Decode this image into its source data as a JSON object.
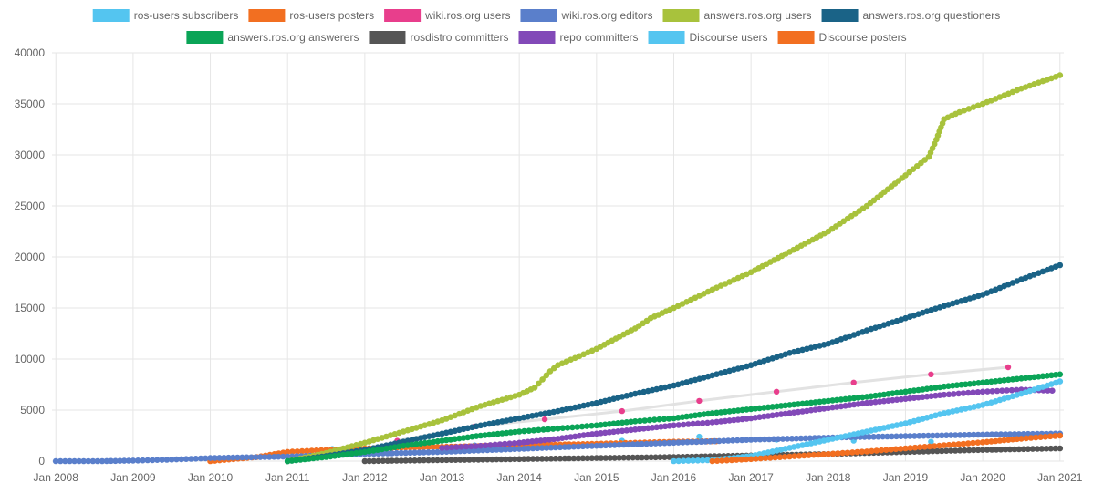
{
  "chart_data": {
    "type": "line",
    "legend_position": "top",
    "grid": true,
    "xlim": [
      2007.95,
      2021.05
    ],
    "ylim": [
      0,
      40000
    ],
    "x_ticks": [
      {
        "x": 2008,
        "label": "Jan 2008"
      },
      {
        "x": 2009,
        "label": "Jan 2009"
      },
      {
        "x": 2010,
        "label": "Jan 2010"
      },
      {
        "x": 2011,
        "label": "Jan 2011"
      },
      {
        "x": 2012,
        "label": "Jan 2012"
      },
      {
        "x": 2013,
        "label": "Jan 2013"
      },
      {
        "x": 2014,
        "label": "Jan 2014"
      },
      {
        "x": 2015,
        "label": "Jan 2015"
      },
      {
        "x": 2016,
        "label": "Jan 2016"
      },
      {
        "x": 2017,
        "label": "Jan 2017"
      },
      {
        "x": 2018,
        "label": "Jan 2018"
      },
      {
        "x": 2019,
        "label": "Jan 2019"
      },
      {
        "x": 2020,
        "label": "Jan 2020"
      },
      {
        "x": 2021,
        "label": "Jan 2021"
      }
    ],
    "y_ticks": [
      {
        "y": 0,
        "label": "0"
      },
      {
        "y": 5000,
        "label": "5000"
      },
      {
        "y": 10000,
        "label": "10000"
      },
      {
        "y": 15000,
        "label": "15000"
      },
      {
        "y": 20000,
        "label": "20000"
      },
      {
        "y": 25000,
        "label": "25000"
      },
      {
        "y": 30000,
        "label": "30000"
      },
      {
        "y": 35000,
        "label": "35000"
      },
      {
        "y": 40000,
        "label": "40000"
      }
    ],
    "series": [
      {
        "name": "ros-users subscribers",
        "color": "#54c5f0",
        "line": false,
        "points": [
          [
            2011.58,
            1200
          ],
          [
            2012.42,
            1400
          ],
          [
            2013.42,
            1550
          ],
          [
            2014.33,
            1700
          ],
          [
            2015.33,
            2000
          ],
          [
            2016.33,
            2400
          ],
          [
            2017.33,
            2100
          ],
          [
            2018.33,
            2000
          ],
          [
            2019.33,
            1900
          ]
        ]
      },
      {
        "name": "ros-users posters",
        "color": "#f26f21",
        "line": true,
        "points": [
          [
            2010.0,
            0
          ],
          [
            2010.3,
            200
          ],
          [
            2010.6,
            400
          ],
          [
            2011.0,
            900
          ],
          [
            2011.5,
            1100
          ],
          [
            2012.0,
            1250
          ],
          [
            2013.0,
            1400
          ],
          [
            2014.0,
            1550
          ],
          [
            2015.0,
            1700
          ],
          [
            2015.5,
            1800
          ],
          [
            2016.0,
            1900
          ],
          [
            2016.55,
            1950
          ]
        ]
      },
      {
        "name": "wiki.ros.org users",
        "color": "#e83e8c",
        "line": true,
        "line_color": "#e2e2e2",
        "points": [
          [
            2012.42,
            2000
          ],
          [
            2013.42,
            3400
          ],
          [
            2014.33,
            4100
          ],
          [
            2015.33,
            4900
          ],
          [
            2016.33,
            5900
          ],
          [
            2017.33,
            6800
          ],
          [
            2018.33,
            7700
          ],
          [
            2019.33,
            8500
          ],
          [
            2020.33,
            9200
          ]
        ]
      },
      {
        "name": "wiki.ros.org editors",
        "color": "#5a7fcb",
        "line": true,
        "points": [
          [
            2008.0,
            0
          ],
          [
            2008.3,
            0
          ],
          [
            2008.6,
            0
          ],
          [
            2009.0,
            50
          ],
          [
            2009.5,
            150
          ],
          [
            2010.0,
            300
          ],
          [
            2011.0,
            450
          ],
          [
            2012.0,
            700
          ],
          [
            2013.0,
            900
          ],
          [
            2014.0,
            1200
          ],
          [
            2015.0,
            1500
          ],
          [
            2016.0,
            1800
          ],
          [
            2017.0,
            2100
          ],
          [
            2018.0,
            2300
          ],
          [
            2019.0,
            2450
          ],
          [
            2020.0,
            2600
          ],
          [
            2021.0,
            2700
          ]
        ]
      },
      {
        "name": "answers.ros.org users",
        "color": "#a8c23c",
        "line": true,
        "points": [
          [
            2011.0,
            0
          ],
          [
            2011.5,
            800
          ],
          [
            2012.0,
            1800
          ],
          [
            2012.5,
            2900
          ],
          [
            2013.0,
            4000
          ],
          [
            2013.5,
            5400
          ],
          [
            2014.0,
            6500
          ],
          [
            2014.2,
            7200
          ],
          [
            2014.3,
            8000
          ],
          [
            2014.4,
            8800
          ],
          [
            2014.5,
            9400
          ],
          [
            2015.0,
            11000
          ],
          [
            2015.5,
            13000
          ],
          [
            2015.7,
            14000
          ],
          [
            2016.0,
            15000
          ],
          [
            2016.5,
            16800
          ],
          [
            2017.0,
            18500
          ],
          [
            2017.5,
            20500
          ],
          [
            2018.0,
            22500
          ],
          [
            2018.5,
            25000
          ],
          [
            2019.0,
            28000
          ],
          [
            2019.3,
            29800
          ],
          [
            2019.4,
            31500
          ],
          [
            2019.5,
            33500
          ],
          [
            2019.7,
            34200
          ],
          [
            2020.0,
            35000
          ],
          [
            2020.5,
            36500
          ],
          [
            2021.0,
            37800
          ]
        ]
      },
      {
        "name": "answers.ros.org questioners",
        "color": "#1a6387",
        "line": true,
        "points": [
          [
            2011.0,
            0
          ],
          [
            2011.5,
            500
          ],
          [
            2012.0,
            1100
          ],
          [
            2012.5,
            1900
          ],
          [
            2013.0,
            2700
          ],
          [
            2013.5,
            3500
          ],
          [
            2014.0,
            4200
          ],
          [
            2014.5,
            4900
          ],
          [
            2015.0,
            5700
          ],
          [
            2015.5,
            6600
          ],
          [
            2016.0,
            7400
          ],
          [
            2016.5,
            8400
          ],
          [
            2017.0,
            9400
          ],
          [
            2017.5,
            10600
          ],
          [
            2018.0,
            11500
          ],
          [
            2018.5,
            12800
          ],
          [
            2019.0,
            14000
          ],
          [
            2019.5,
            15200
          ],
          [
            2020.0,
            16300
          ],
          [
            2020.5,
            17800
          ],
          [
            2021.0,
            19200
          ]
        ]
      },
      {
        "name": "answers.ros.org answerers",
        "color": "#0aa457",
        "line": true,
        "points": [
          [
            2011.0,
            0
          ],
          [
            2011.5,
            400
          ],
          [
            2012.0,
            900
          ],
          [
            2012.5,
            1500
          ],
          [
            2013.0,
            2000
          ],
          [
            2013.5,
            2500
          ],
          [
            2014.0,
            2900
          ],
          [
            2014.5,
            3200
          ],
          [
            2015.0,
            3500
          ],
          [
            2015.5,
            3900
          ],
          [
            2016.0,
            4200
          ],
          [
            2016.5,
            4700
          ],
          [
            2017.0,
            5100
          ],
          [
            2017.5,
            5500
          ],
          [
            2018.0,
            5900
          ],
          [
            2018.5,
            6300
          ],
          [
            2019.0,
            6800
          ],
          [
            2019.5,
            7300
          ],
          [
            2020.0,
            7700
          ],
          [
            2020.5,
            8100
          ],
          [
            2021.0,
            8500
          ]
        ]
      },
      {
        "name": "rosdistro committers",
        "color": "#555555",
        "line": true,
        "points": [
          [
            2012.0,
            0
          ],
          [
            2013.0,
            100
          ],
          [
            2014.0,
            200
          ],
          [
            2015.0,
            300
          ],
          [
            2016.0,
            400
          ],
          [
            2017.0,
            550
          ],
          [
            2018.0,
            700
          ],
          [
            2019.0,
            900
          ],
          [
            2020.0,
            1100
          ],
          [
            2021.0,
            1250
          ]
        ]
      },
      {
        "name": "repo committers",
        "color": "#8249b8",
        "line": true,
        "points": [
          [
            2013.0,
            1300
          ],
          [
            2013.5,
            1500
          ],
          [
            2014.0,
            1800
          ],
          [
            2014.5,
            2200
          ],
          [
            2015.0,
            2700
          ],
          [
            2015.5,
            3100
          ],
          [
            2016.0,
            3500
          ],
          [
            2016.5,
            3800
          ],
          [
            2017.0,
            4200
          ],
          [
            2017.5,
            4700
          ],
          [
            2018.0,
            5200
          ],
          [
            2018.5,
            5700
          ],
          [
            2019.0,
            6100
          ],
          [
            2019.5,
            6500
          ],
          [
            2020.0,
            6800
          ],
          [
            2020.5,
            7000
          ],
          [
            2020.9,
            6900
          ]
        ]
      },
      {
        "name": "Discourse users",
        "color": "#54c5f0",
        "line": true,
        "points": [
          [
            2016.0,
            0
          ],
          [
            2016.5,
            100
          ],
          [
            2017.0,
            500
          ],
          [
            2017.5,
            1300
          ],
          [
            2018.0,
            2100
          ],
          [
            2018.5,
            2900
          ],
          [
            2019.0,
            3700
          ],
          [
            2019.5,
            4700
          ],
          [
            2020.0,
            5500
          ],
          [
            2020.5,
            6600
          ],
          [
            2021.0,
            7800
          ]
        ]
      },
      {
        "name": "Discourse posters",
        "color": "#f26f21",
        "line": true,
        "points": [
          [
            2016.5,
            0
          ],
          [
            2017.0,
            200
          ],
          [
            2017.5,
            450
          ],
          [
            2018.0,
            700
          ],
          [
            2018.5,
            950
          ],
          [
            2019.0,
            1250
          ],
          [
            2019.5,
            1550
          ],
          [
            2020.0,
            1850
          ],
          [
            2020.5,
            2200
          ],
          [
            2021.0,
            2500
          ]
        ]
      }
    ]
  }
}
